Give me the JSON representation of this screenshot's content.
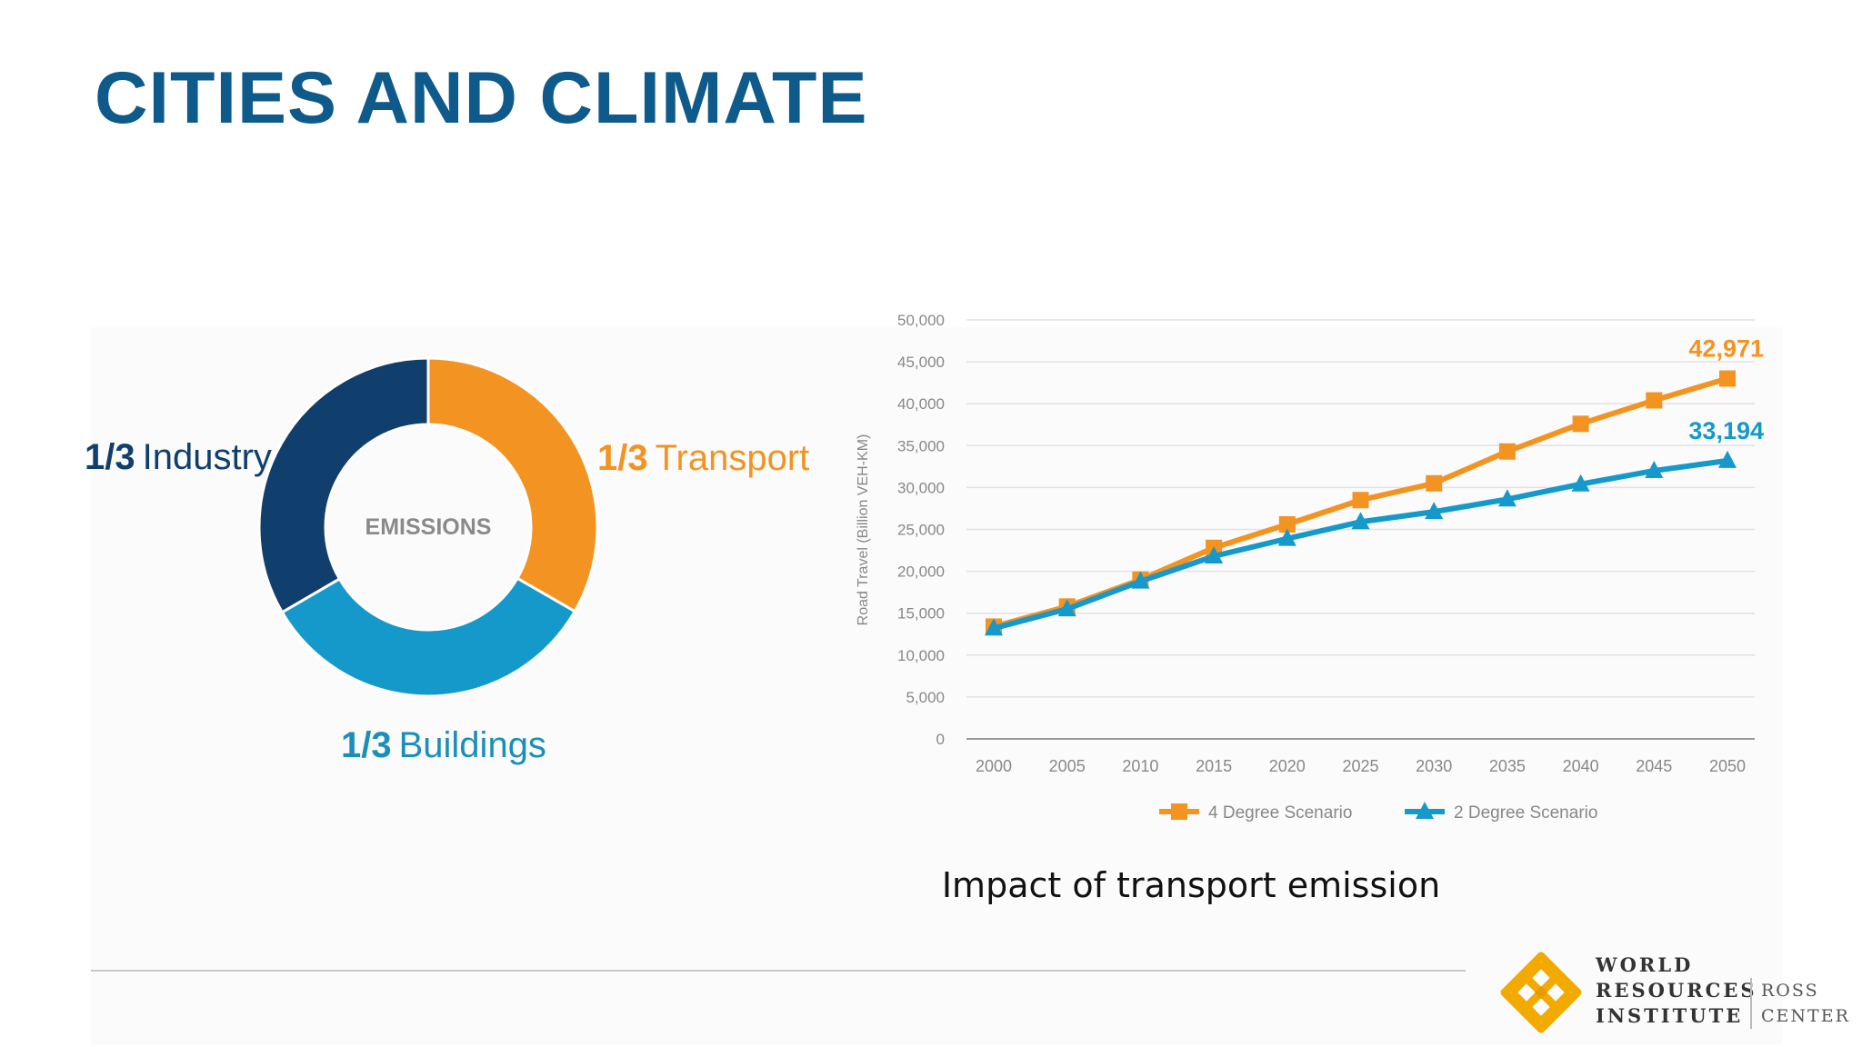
{
  "slide": {
    "title": "CITIES AND CLIMATE",
    "caption": "Impact of transport emission"
  },
  "donut": {
    "center_label": "EMISSIONS",
    "segments": [
      {
        "fraction": "1/3",
        "label": "Transport",
        "share": 0.333,
        "color": "#f39321"
      },
      {
        "fraction": "1/3",
        "label": "Buildings",
        "share": 0.333,
        "color": "#1599cb"
      },
      {
        "fraction": "1/3",
        "label": "Industry",
        "share": 0.334,
        "color": "#103f6e"
      }
    ]
  },
  "chart_data": {
    "type": "line",
    "ylabel": "Road Travel (Billion VEH-KM)",
    "xlabel": "",
    "x": [
      2000,
      2005,
      2010,
      2015,
      2020,
      2025,
      2030,
      2035,
      2040,
      2045,
      2050
    ],
    "ylim": [
      0,
      50000
    ],
    "yticks": [
      "0",
      "5,000",
      "10,000",
      "15,000",
      "20,000",
      "25,000",
      "30,000",
      "35,000",
      "40,000",
      "45,000",
      "50,000"
    ],
    "xticks": [
      "2000",
      "2005",
      "2010",
      "2015",
      "2020",
      "2025",
      "2030",
      "2035",
      "2040",
      "2045",
      "2050"
    ],
    "grid": true,
    "legend": "bottom",
    "series": [
      {
        "name": "4 Degree Scenario",
        "color": "#f39321",
        "marker": "square",
        "values": [
          13400,
          15800,
          19000,
          22800,
          25600,
          28500,
          30500,
          34300,
          37600,
          40400,
          43000
        ],
        "end_label": "42,971"
      },
      {
        "name": "2 Degree Scenario",
        "color": "#1599cb",
        "marker": "triangle",
        "values": [
          13200,
          15500,
          18800,
          21800,
          23900,
          25900,
          27100,
          28600,
          30400,
          32000,
          33200
        ],
        "end_label": "33,194"
      }
    ]
  },
  "logo": {
    "line1": "WORLD",
    "line2": "RESOURCES",
    "line3": "INSTITUTE",
    "ross1": "ROSS",
    "ross2": "CENTER"
  }
}
